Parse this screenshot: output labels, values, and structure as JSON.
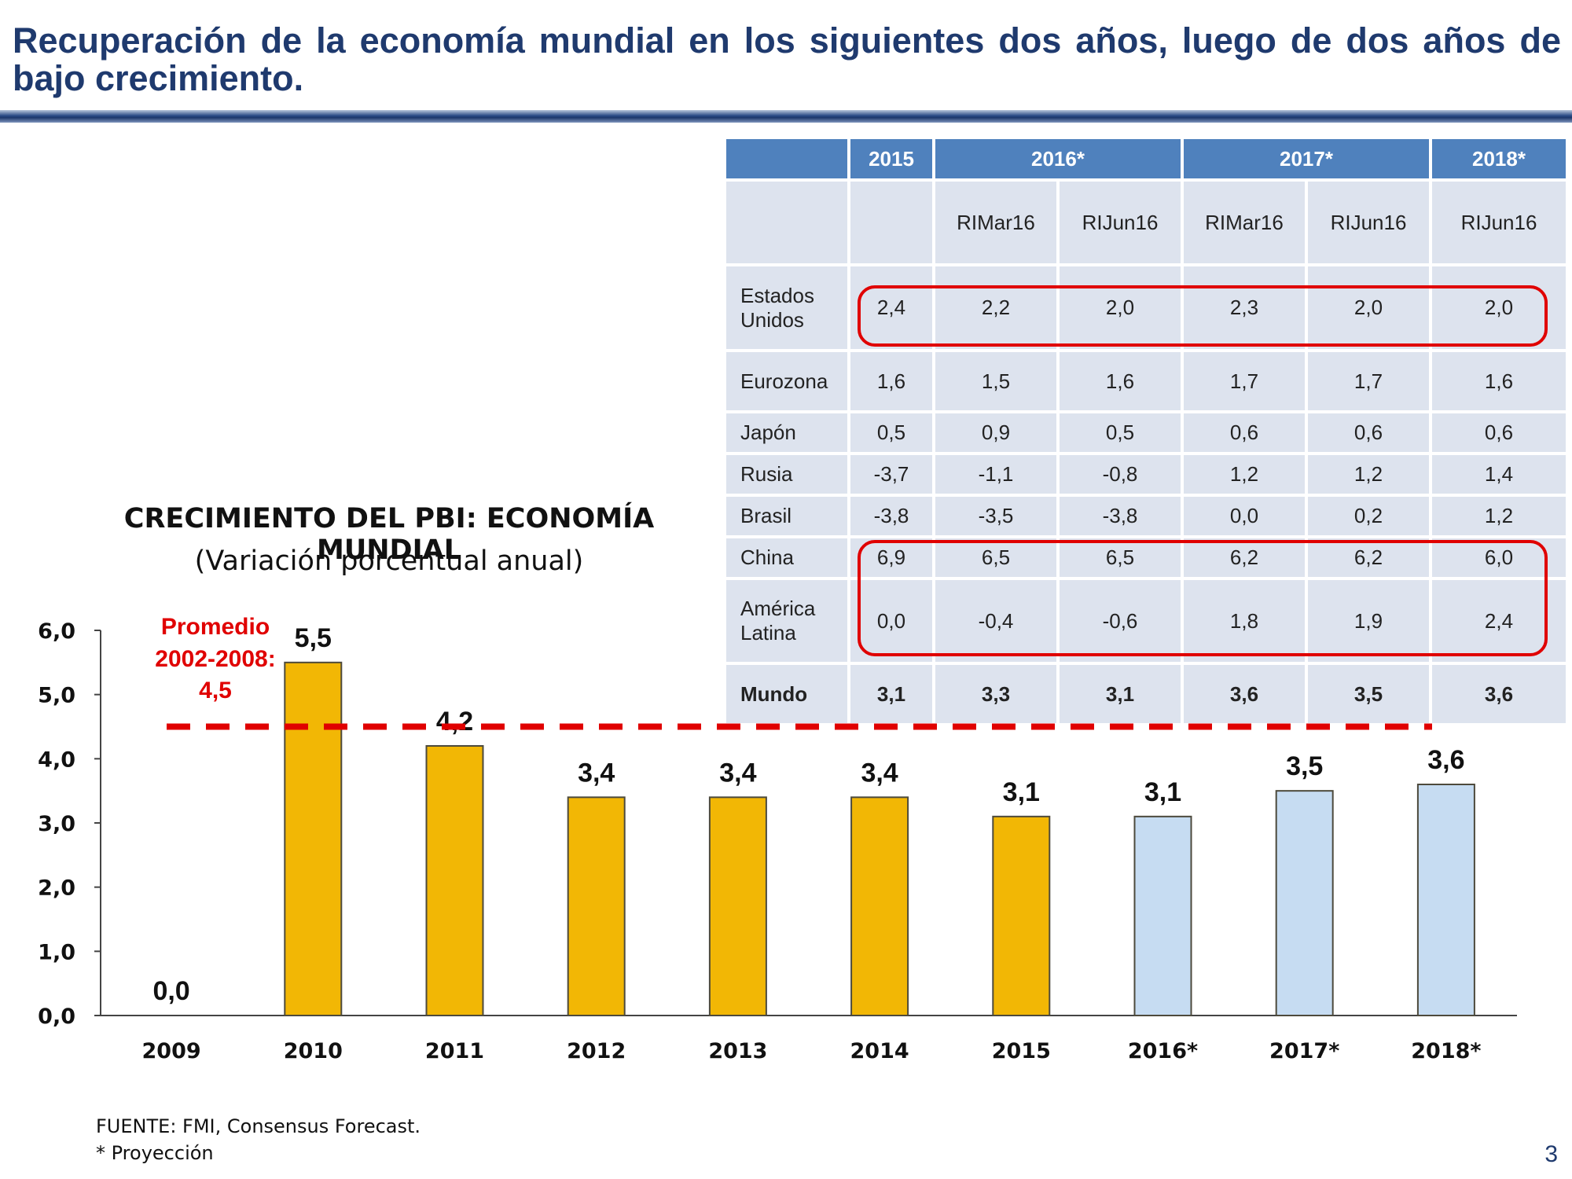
{
  "slide": {
    "title": "Recuperación de la economía mundial en los siguientes dos años, luego de dos años de bajo crecimiento.",
    "page_number": "3"
  },
  "chart_data": {
    "type": "bar",
    "title": "CRECIMIENTO DEL PBI: ECONOMÍA MUNDIAL",
    "subtitle": "(Variación porcentual anual)",
    "categories": [
      "2009",
      "2010",
      "2011",
      "2012",
      "2013",
      "2014",
      "2015",
      "2016*",
      "2017*",
      "2018*"
    ],
    "values": [
      0.0,
      5.5,
      4.2,
      3.4,
      3.4,
      3.4,
      3.1,
      3.1,
      3.5,
      3.6
    ],
    "value_labels": [
      "0,0",
      "5,5",
      "4,2",
      "3,4",
      "3,4",
      "3,4",
      "3,1",
      "3,1",
      "3,5",
      "3,6"
    ],
    "projected": [
      false,
      false,
      false,
      false,
      false,
      false,
      false,
      true,
      true,
      true
    ],
    "ylim": [
      0,
      6
    ],
    "yticks": [
      "0,0",
      "1,0",
      "2,0",
      "3,0",
      "4,0",
      "5,0",
      "6,0"
    ],
    "average": {
      "value": 4.5,
      "label_lines": [
        "Promedio",
        "2002-2008:",
        "4,5"
      ]
    },
    "colors": {
      "historical": "#f2b705",
      "projected": "#c6dcf2",
      "bar_outline": "#4d4a3c",
      "average": "#e00000"
    }
  },
  "table": {
    "header": {
      "corner": "",
      "years": [
        "2015",
        "2016*",
        "2017*",
        "2018*"
      ]
    },
    "subheader": [
      "RIMar16",
      "RIJun16",
      "RIMar16",
      "RIJun16",
      "RIJun16"
    ],
    "rows": [
      {
        "country": "Estados Unidos",
        "values": [
          "2,4",
          "2,2",
          "2,0",
          "2,3",
          "2,0",
          "2,0"
        ]
      },
      {
        "country": "Eurozona",
        "values": [
          "1,6",
          "1,5",
          "1,6",
          "1,7",
          "1,7",
          "1,6"
        ]
      },
      {
        "country": "Japón",
        "values": [
          "0,5",
          "0,9",
          "0,5",
          "0,6",
          "0,6",
          "0,6"
        ]
      },
      {
        "country": "Rusia",
        "values": [
          "-3,7",
          "-1,1",
          "-0,8",
          "1,2",
          "1,2",
          "1,4"
        ]
      },
      {
        "country": "Brasil",
        "values": [
          "-3,8",
          "-3,5",
          "-3,8",
          "0,0",
          "0,2",
          "1,2"
        ]
      },
      {
        "country": "China",
        "values": [
          "6,9",
          "6,5",
          "6,5",
          "6,2",
          "6,2",
          "6,0"
        ]
      },
      {
        "country": "América Latina",
        "values": [
          "0,0",
          "-0,4",
          "-0,6",
          "1,8",
          "1,9",
          "2,4"
        ]
      }
    ],
    "world": {
      "country": "Mundo",
      "values": [
        "3,1",
        "3,3",
        "3,1",
        "3,6",
        "3,5",
        "3,6"
      ]
    }
  },
  "footer": {
    "source": "FUENTE: FMI, Consensus Forecast.",
    "note": "* Proyección"
  }
}
